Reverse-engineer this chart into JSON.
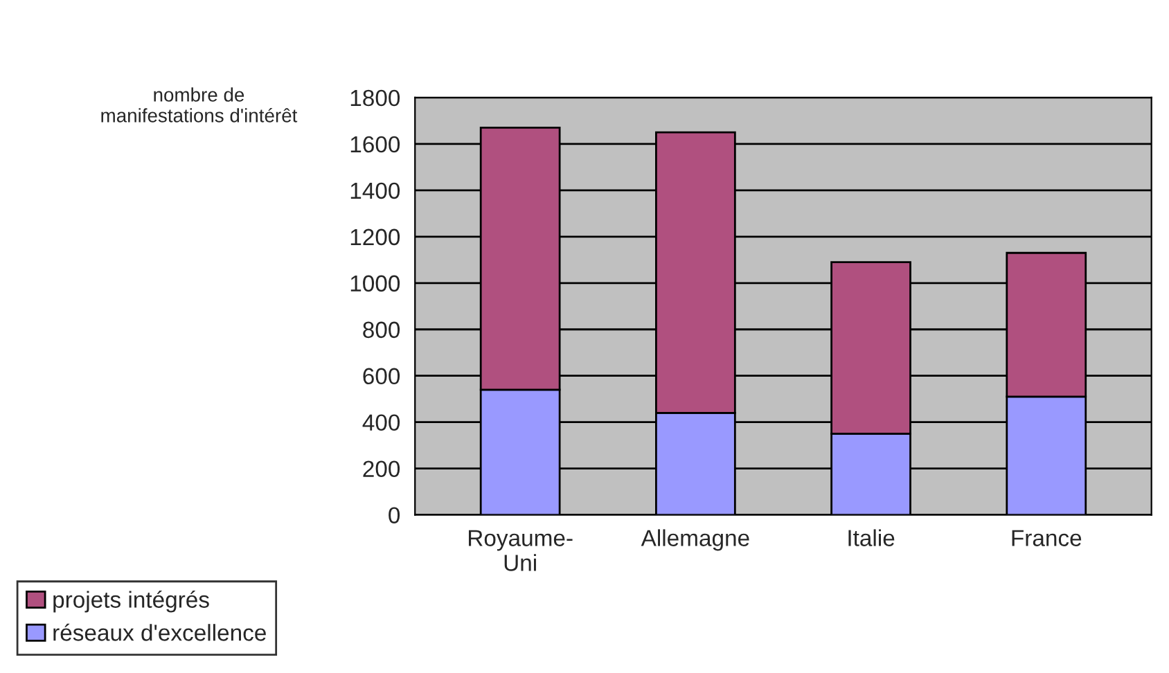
{
  "chart_data": {
    "type": "bar",
    "stacked": true,
    "ylabel": "nombre de\nmanifestations d'intérêt",
    "categories": [
      "Royaume-\nUni",
      "Allemagne",
      "Italie",
      "France"
    ],
    "series": [
      {
        "name": "réseaux d'excellence",
        "color": "#9999ff",
        "values": [
          540,
          440,
          350,
          510
        ]
      },
      {
        "name": "projets intégrés",
        "color": "#b0507f",
        "values": [
          1130,
          1210,
          740,
          620
        ]
      }
    ],
    "ylim": [
      0,
      1800
    ],
    "yticks": [
      0,
      200,
      400,
      600,
      800,
      1000,
      1200,
      1400,
      1600,
      1800
    ],
    "grid": "y",
    "legend": "bottom left"
  }
}
